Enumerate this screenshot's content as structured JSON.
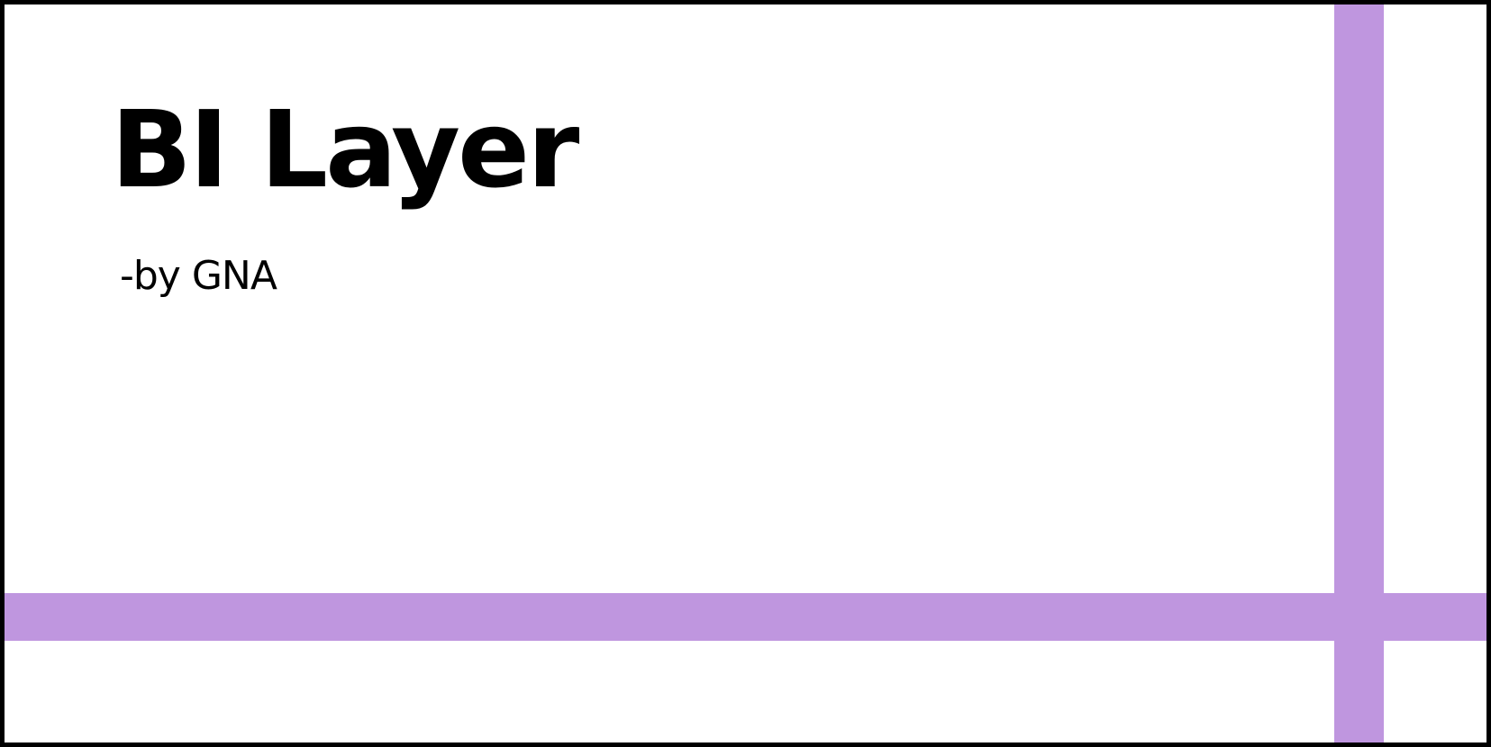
{
  "slide": {
    "title": "BI Layer",
    "subtitle": "-by GNA"
  },
  "colors": {
    "accent_band": "#bf96df",
    "border": "#000000",
    "background": "#ffffff",
    "text": "#000000"
  }
}
